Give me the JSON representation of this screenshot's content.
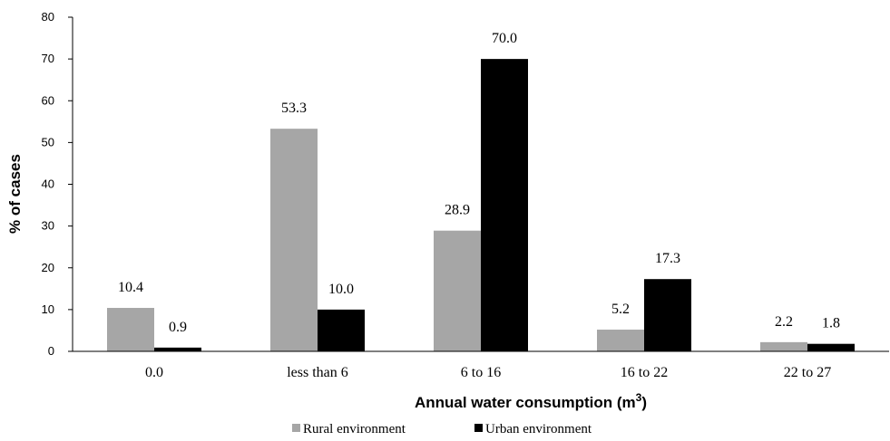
{
  "chart_data": {
    "type": "bar",
    "categories": [
      "0.0",
      "less than 6",
      "6 to 16",
      "16 to 22",
      "22 to 27"
    ],
    "series": [
      {
        "name": "Rural environment",
        "values": [
          10.4,
          53.3,
          28.9,
          5.2,
          2.2
        ],
        "labels": [
          "10.4",
          "53.3",
          "28.9",
          "5.2",
          "2.2"
        ],
        "color": "#a6a6a6"
      },
      {
        "name": "Urban environment",
        "values": [
          0.9,
          10.0,
          70.0,
          17.3,
          1.8
        ],
        "labels": [
          "0.9",
          "10.0",
          "70.0",
          "17.3",
          "1.8"
        ],
        "color": "#000000"
      }
    ],
    "xlabel": "Annual water consumption (m",
    "xlabel_superscript": "3",
    "xlabel_suffix": ")",
    "ylabel": "% of cases",
    "ylim": [
      0,
      80
    ],
    "yticks": [
      "0",
      "10",
      "20",
      "30",
      "40",
      "50",
      "60",
      "70",
      "80"
    ],
    "grid": false,
    "legend_position": "bottom"
  }
}
